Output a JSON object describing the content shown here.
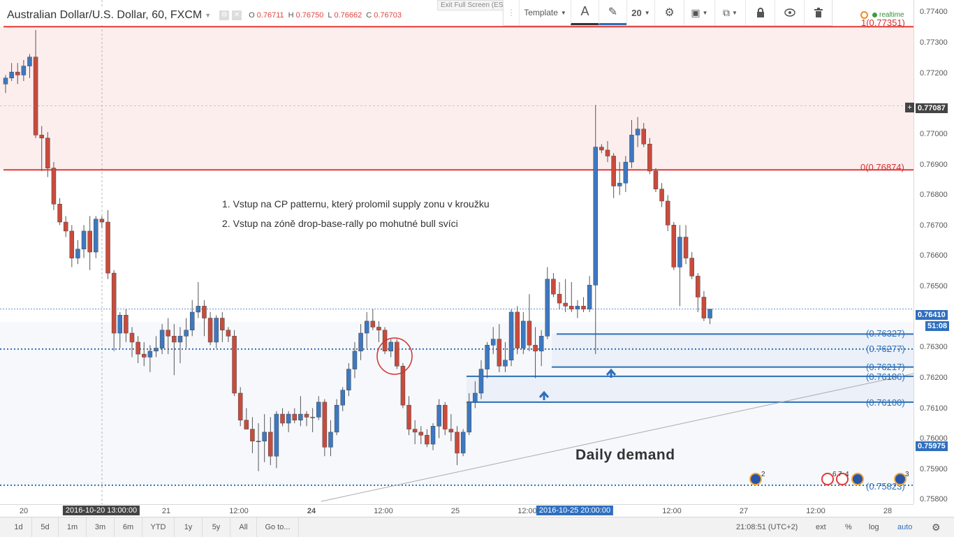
{
  "header": {
    "symbol_title": "Australian Dollar/U.S. Dollar, 60, FXCM",
    "ohlc": {
      "o_label": "O",
      "o": "0.76711",
      "h_label": "H",
      "h": "0.76750",
      "l_label": "L",
      "l": "0.76662",
      "c_label": "C",
      "c": "0.76703"
    },
    "exit_fullscreen": "Exit Full Screen (ESC)",
    "realtime": "realtime"
  },
  "toolbar": {
    "template_label": "Template",
    "font_icon": "A",
    "line_width": "20",
    "icons": [
      "text-icon",
      "pencil-icon",
      "gear-icon",
      "layers-icon",
      "clone-icon",
      "lock-icon",
      "eye-icon",
      "trash-icon"
    ]
  },
  "annotations": {
    "line1": "1. Vstup na CP patternu, který prolomil supply zonu v kroužku",
    "line2": "2. Vstup na zóně drop-base-rally po mohutné bull svíci",
    "daily_demand": "Daily demand"
  },
  "fib_labels": {
    "top": "1(0.77351)",
    "bottom": "0(0.76874)"
  },
  "level_labels": [
    "(0.76327)",
    "(0.76277)",
    "(0.76217)",
    "(0.76186)",
    "(0.76100)",
    "(0.75823)"
  ],
  "price_axis": {
    "ticks": [
      "0.77400",
      "0.77300",
      "0.77200",
      "0.76900",
      "0.76800",
      "0.76700",
      "0.76600",
      "0.76500",
      "0.76300",
      "0.76200",
      "0.76100",
      "0.76000",
      "0.75900",
      "0.75800"
    ],
    "badges": {
      "crosshair": "0.77087",
      "hidden": "0.77000",
      "last": "0.76410",
      "countdown": "51:08",
      "level": "0.75975"
    }
  },
  "time_axis": {
    "ticks": [
      "20",
      "21",
      "12:00",
      "24",
      "12:00",
      "25",
      "12:00",
      "12:00",
      "27",
      "12:00",
      "28"
    ],
    "badge_left": "2016-10-20 13:00:00",
    "badge_right": "2016-10-25 20:00:00"
  },
  "bottom_bar": {
    "ranges": [
      "1d",
      "5d",
      "1m",
      "3m",
      "6m",
      "YTD",
      "1y",
      "5y",
      "All"
    ],
    "goto": "Go to...",
    "clock": "21:08:51 (UTC+2)",
    "ext": "ext",
    "percent": "%",
    "log": "log",
    "auto": "auto"
  },
  "events": {
    "counts": [
      "2",
      "6",
      "7",
      "4",
      "3"
    ]
  },
  "colors": {
    "up": "#3d78c1",
    "down": "#c94b3c",
    "fib": "#e53935",
    "level": "#2c6fb5",
    "zone": "#e8eef8"
  },
  "chart_data": {
    "type": "candlestick",
    "title": "Australian Dollar/U.S. Dollar, 60, FXCM",
    "ylim": [
      0.7576,
      0.7744
    ],
    "bars": [
      [
        0.7716,
        0.7719,
        0.7713,
        0.7718
      ],
      [
        0.7718,
        0.7723,
        0.7717,
        0.772
      ],
      [
        0.772,
        0.7723,
        0.7716,
        0.7719
      ],
      [
        0.7719,
        0.7724,
        0.7717,
        0.7722
      ],
      [
        0.7722,
        0.7726,
        0.7718,
        0.7725
      ],
      [
        0.7725,
        0.7734,
        0.7698,
        0.7699
      ],
      [
        0.7699,
        0.7702,
        0.7687,
        0.7698
      ],
      [
        0.7698,
        0.77,
        0.7685,
        0.7688
      ],
      [
        0.7688,
        0.769,
        0.7674,
        0.7676
      ],
      [
        0.7676,
        0.7678,
        0.7669,
        0.767
      ],
      [
        0.767,
        0.7672,
        0.7665,
        0.7667
      ],
      [
        0.7667,
        0.7669,
        0.7655,
        0.7658
      ],
      [
        0.7658,
        0.7664,
        0.7656,
        0.7661
      ],
      [
        0.7661,
        0.7669,
        0.7658,
        0.7667
      ],
      [
        0.7667,
        0.7672,
        0.7654,
        0.766
      ],
      [
        0.766,
        0.7672,
        0.7658,
        0.7671
      ],
      [
        0.7671,
        0.7672,
        0.7668,
        0.767
      ],
      [
        0.767,
        0.7674,
        0.7651,
        0.7653
      ],
      [
        0.7653,
        0.7654,
        0.7627,
        0.7633
      ],
      [
        0.7633,
        0.764,
        0.7628,
        0.7639
      ],
      [
        0.7639,
        0.7641,
        0.763,
        0.7633
      ],
      [
        0.7633,
        0.7635,
        0.7625,
        0.763
      ],
      [
        0.763,
        0.7632,
        0.7623,
        0.7626
      ],
      [
        0.7626,
        0.763,
        0.7622,
        0.7625
      ],
      [
        0.7625,
        0.7629,
        0.762,
        0.7627
      ],
      [
        0.7627,
        0.7632,
        0.7625,
        0.7628
      ],
      [
        0.7628,
        0.7636,
        0.7626,
        0.7634
      ],
      [
        0.7634,
        0.7638,
        0.7626,
        0.7632
      ],
      [
        0.7632,
        0.7636,
        0.7619,
        0.763
      ],
      [
        0.763,
        0.7635,
        0.7623,
        0.7632
      ],
      [
        0.7632,
        0.7638,
        0.7628,
        0.7634
      ],
      [
        0.7634,
        0.7644,
        0.7632,
        0.764
      ],
      [
        0.764,
        0.765,
        0.7638,
        0.7642
      ],
      [
        0.7642,
        0.7644,
        0.7632,
        0.7638
      ],
      [
        0.7638,
        0.764,
        0.7629,
        0.763
      ],
      [
        0.763,
        0.7639,
        0.7628,
        0.7638
      ],
      [
        0.7638,
        0.764,
        0.763,
        0.7634
      ],
      [
        0.7634,
        0.7635,
        0.763,
        0.7632
      ],
      [
        0.7632,
        0.7634,
        0.7612,
        0.7613
      ],
      [
        0.7613,
        0.7615,
        0.7602,
        0.7604
      ],
      [
        0.7604,
        0.7608,
        0.7601,
        0.7601
      ],
      [
        0.7601,
        0.7605,
        0.7593,
        0.7597
      ],
      [
        0.7597,
        0.7603,
        0.7587,
        0.7597
      ],
      [
        0.7597,
        0.7606,
        0.759,
        0.76
      ],
      [
        0.76,
        0.7605,
        0.7589,
        0.7592
      ],
      [
        0.7592,
        0.7607,
        0.7588,
        0.7606
      ],
      [
        0.7606,
        0.7608,
        0.7602,
        0.7603
      ],
      [
        0.7603,
        0.7607,
        0.76,
        0.7606
      ],
      [
        0.7606,
        0.7608,
        0.7603,
        0.7604
      ],
      [
        0.7604,
        0.7612,
        0.7602,
        0.7606
      ],
      [
        0.7606,
        0.7607,
        0.7602,
        0.7605
      ],
      [
        0.7605,
        0.7608,
        0.76,
        0.7605
      ],
      [
        0.7605,
        0.7612,
        0.7604,
        0.761
      ],
      [
        0.761,
        0.7611,
        0.7592,
        0.7595
      ],
      [
        0.7595,
        0.7604,
        0.7592,
        0.76
      ],
      [
        0.76,
        0.7611,
        0.7599,
        0.7609
      ],
      [
        0.7609,
        0.7615,
        0.7607,
        0.7614
      ],
      [
        0.7614,
        0.7623,
        0.7612,
        0.7621
      ],
      [
        0.7621,
        0.763,
        0.7618,
        0.7627
      ],
      [
        0.7627,
        0.7636,
        0.7624,
        0.7633
      ],
      [
        0.7633,
        0.764,
        0.7628,
        0.7637
      ],
      [
        0.7637,
        0.7641,
        0.7634,
        0.7635
      ],
      [
        0.7635,
        0.7637,
        0.763,
        0.7634
      ],
      [
        0.7634,
        0.7635,
        0.7626,
        0.7627
      ],
      [
        0.7627,
        0.7631,
        0.7625,
        0.763
      ],
      [
        0.763,
        0.7631,
        0.7621,
        0.7622
      ],
      [
        0.7622,
        0.7623,
        0.7608,
        0.7609
      ],
      [
        0.7609,
        0.7612,
        0.7599,
        0.7601
      ],
      [
        0.7601,
        0.7604,
        0.7596,
        0.76
      ],
      [
        0.76,
        0.7602,
        0.7596,
        0.7599
      ],
      [
        0.7599,
        0.7601,
        0.7595,
        0.7596
      ],
      [
        0.7596,
        0.7603,
        0.7594,
        0.7602
      ],
      [
        0.7602,
        0.7611,
        0.7598,
        0.7609
      ],
      [
        0.7609,
        0.761,
        0.7599,
        0.7601
      ],
      [
        0.7601,
        0.7606,
        0.7597,
        0.76
      ],
      [
        0.76,
        0.7602,
        0.7589,
        0.7593
      ],
      [
        0.7593,
        0.7601,
        0.7592,
        0.76
      ],
      [
        0.76,
        0.7613,
        0.7599,
        0.761
      ],
      [
        0.761,
        0.7617,
        0.7608,
        0.7613
      ],
      [
        0.7613,
        0.7624,
        0.7611,
        0.7621
      ],
      [
        0.7621,
        0.763,
        0.7618,
        0.7629
      ],
      [
        0.7629,
        0.7635,
        0.7626,
        0.7631
      ],
      [
        0.7631,
        0.7636,
        0.762,
        0.7622
      ],
      [
        0.7622,
        0.763,
        0.762,
        0.7624
      ],
      [
        0.7624,
        0.7641,
        0.7622,
        0.764
      ],
      [
        0.764,
        0.7642,
        0.7626,
        0.7628
      ],
      [
        0.7628,
        0.764,
        0.7626,
        0.7637
      ],
      [
        0.7637,
        0.7646,
        0.7627,
        0.7629
      ],
      [
        0.7629,
        0.7635,
        0.7618,
        0.7627
      ],
      [
        0.7627,
        0.7634,
        0.7622,
        0.7632
      ],
      [
        0.7632,
        0.7655,
        0.7631,
        0.7651
      ],
      [
        0.7651,
        0.7653,
        0.7645,
        0.7646
      ],
      [
        0.7646,
        0.765,
        0.7641,
        0.7643
      ],
      [
        0.7643,
        0.7651,
        0.764,
        0.7642
      ],
      [
        0.7642,
        0.765,
        0.764,
        0.7641
      ],
      [
        0.7641,
        0.7644,
        0.7638,
        0.7642
      ],
      [
        0.7642,
        0.7645,
        0.764,
        0.7641
      ],
      [
        0.7641,
        0.7652,
        0.764,
        0.7649
      ],
      [
        0.7649,
        0.7709,
        0.7626,
        0.7695
      ],
      [
        0.7695,
        0.7696,
        0.7693,
        0.7694
      ],
      [
        0.7694,
        0.7697,
        0.769,
        0.7692
      ],
      [
        0.7692,
        0.7693,
        0.7678,
        0.7682
      ],
      [
        0.7682,
        0.769,
        0.7679,
        0.7683
      ],
      [
        0.7683,
        0.7692,
        0.768,
        0.769
      ],
      [
        0.769,
        0.7704,
        0.7688,
        0.7699
      ],
      [
        0.7699,
        0.7705,
        0.7695,
        0.7701
      ],
      [
        0.7701,
        0.7703,
        0.7695,
        0.7696
      ],
      [
        0.7696,
        0.7698,
        0.7686,
        0.7687
      ],
      [
        0.7687,
        0.7688,
        0.768,
        0.7681
      ],
      [
        0.7681,
        0.7683,
        0.7675,
        0.7677
      ],
      [
        0.7677,
        0.7679,
        0.7667,
        0.7669
      ],
      [
        0.7669,
        0.767,
        0.7654,
        0.7655
      ],
      [
        0.7655,
        0.7669,
        0.7642,
        0.7665
      ],
      [
        0.7665,
        0.7669,
        0.7656,
        0.7658
      ],
      [
        0.7658,
        0.766,
        0.7651,
        0.7652
      ],
      [
        0.7652,
        0.7653,
        0.764,
        0.7645
      ],
      [
        0.7645,
        0.7647,
        0.7637,
        0.7638
      ],
      [
        0.7638,
        0.7641,
        0.7636,
        0.7641
      ]
    ],
    "levels": [
      0.77351,
      0.76874,
      0.76327,
      0.76277,
      0.76217,
      0.76186,
      0.761,
      0.75823
    ],
    "grid": true
  }
}
